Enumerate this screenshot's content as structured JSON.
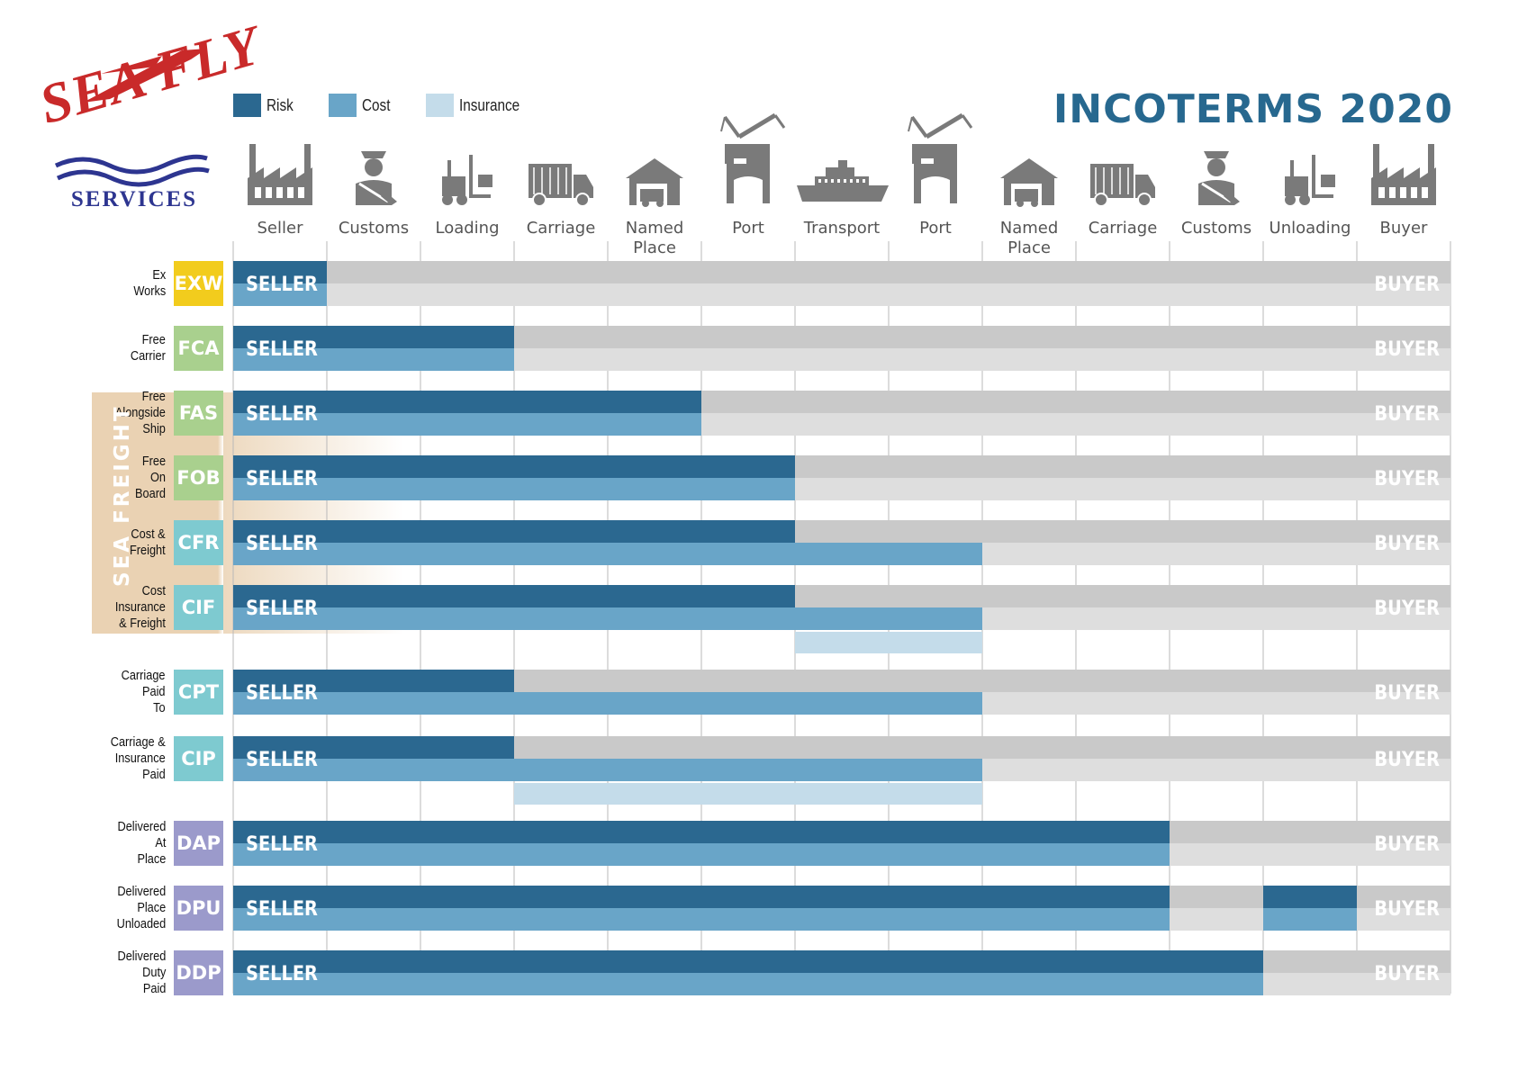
{
  "logo": {
    "top_text": "SEA FLY",
    "bottom_text": "SERVICES",
    "colors": {
      "red": "#c92a2a",
      "blue": "#2d3590"
    }
  },
  "title": "INCOTERMS 2020",
  "legend": [
    {
      "label": "Risk",
      "color": "#2b6890"
    },
    {
      "label": "Cost",
      "color": "#69a5c8"
    },
    {
      "label": "Insurance",
      "color": "#c4dcea"
    }
  ],
  "group_label": "SEA FREIGHT",
  "colors": {
    "risk": "#2b6890",
    "cost": "#69a5c8",
    "insurance": "#c4dcea",
    "buyer_dark": "#c9c9c9",
    "buyer_light": "#dedede",
    "icon": "#7a7a7a",
    "sea_band": "#ead2b3"
  },
  "chart_data": {
    "type": "table",
    "stages": [
      {
        "label": "Seller",
        "icon": "factory-icon"
      },
      {
        "label": "Customs",
        "icon": "customs-officer-icon"
      },
      {
        "label": "Loading",
        "icon": "forklift-icon"
      },
      {
        "label": "Carriage",
        "icon": "truck-icon"
      },
      {
        "label": "Named Place",
        "icon": "warehouse-icon"
      },
      {
        "label": "Port",
        "icon": "port-crane-icon"
      },
      {
        "label": "Transport",
        "icon": "ship-icon"
      },
      {
        "label": "Port",
        "icon": "port-crane-icon"
      },
      {
        "label": "Named Place",
        "icon": "warehouse-icon"
      },
      {
        "label": "Carriage",
        "icon": "truck-icon"
      },
      {
        "label": "Customs",
        "icon": "customs-officer-icon"
      },
      {
        "label": "Unloading",
        "icon": "forklift-icon"
      },
      {
        "label": "Buyer",
        "icon": "factory-icon"
      }
    ],
    "seller_label": "SELLER",
    "buyer_label": "BUYER",
    "terms": [
      {
        "code": "EXW",
        "name": "Ex\nWorks",
        "color": "#f2cc1d",
        "risk_until": 1,
        "cost_until": 1,
        "insurance": null
      },
      {
        "code": "FCA",
        "name": "Free\nCarrier",
        "color": "#a9d08e",
        "risk_until": 3,
        "cost_until": 3,
        "insurance": null
      },
      {
        "code": "FAS",
        "name": "Free\nAlongside\nShip",
        "color": "#a9d08e",
        "risk_until": 5,
        "cost_until": 5,
        "insurance": null,
        "sea_freight": true
      },
      {
        "code": "FOB",
        "name": "Free\nOn\nBoard",
        "color": "#a9d08e",
        "risk_until": 6,
        "cost_until": 6,
        "insurance": null,
        "sea_freight": true
      },
      {
        "code": "CFR",
        "name": "Cost &\nFreight",
        "color": "#7ecad0",
        "risk_until": 6,
        "cost_until": 8,
        "insurance": null,
        "sea_freight": true
      },
      {
        "code": "CIF",
        "name": "Cost\nInsurance\n& Freight",
        "color": "#7ecad0",
        "risk_until": 6,
        "cost_until": 8,
        "insurance": [
          6,
          8
        ],
        "sea_freight": true
      },
      {
        "code": "CPT",
        "name": "Carriage\nPaid\nTo",
        "color": "#7ecad0",
        "risk_until": 3,
        "cost_until": 8,
        "insurance": null
      },
      {
        "code": "CIP",
        "name": "Carriage &\nInsurance\nPaid",
        "color": "#7ecad0",
        "risk_until": 3,
        "cost_until": 8,
        "insurance": [
          3,
          8
        ]
      },
      {
        "code": "DAP",
        "name": "Delivered\nAt\nPlace",
        "color": "#9b9acb",
        "risk_until": 10,
        "cost_until": 10,
        "insurance": null
      },
      {
        "code": "DPU",
        "name": "Delivered\nPlace\nUnloaded",
        "color": "#9b9acb",
        "risk_until": 10,
        "cost_until": 10,
        "insurance": null,
        "extra_seller": [
          11,
          12
        ]
      },
      {
        "code": "DDP",
        "name": "Delivered\nDuty\nPaid",
        "color": "#9b9acb",
        "risk_until": 11,
        "cost_until": 11,
        "insurance": null
      }
    ]
  }
}
